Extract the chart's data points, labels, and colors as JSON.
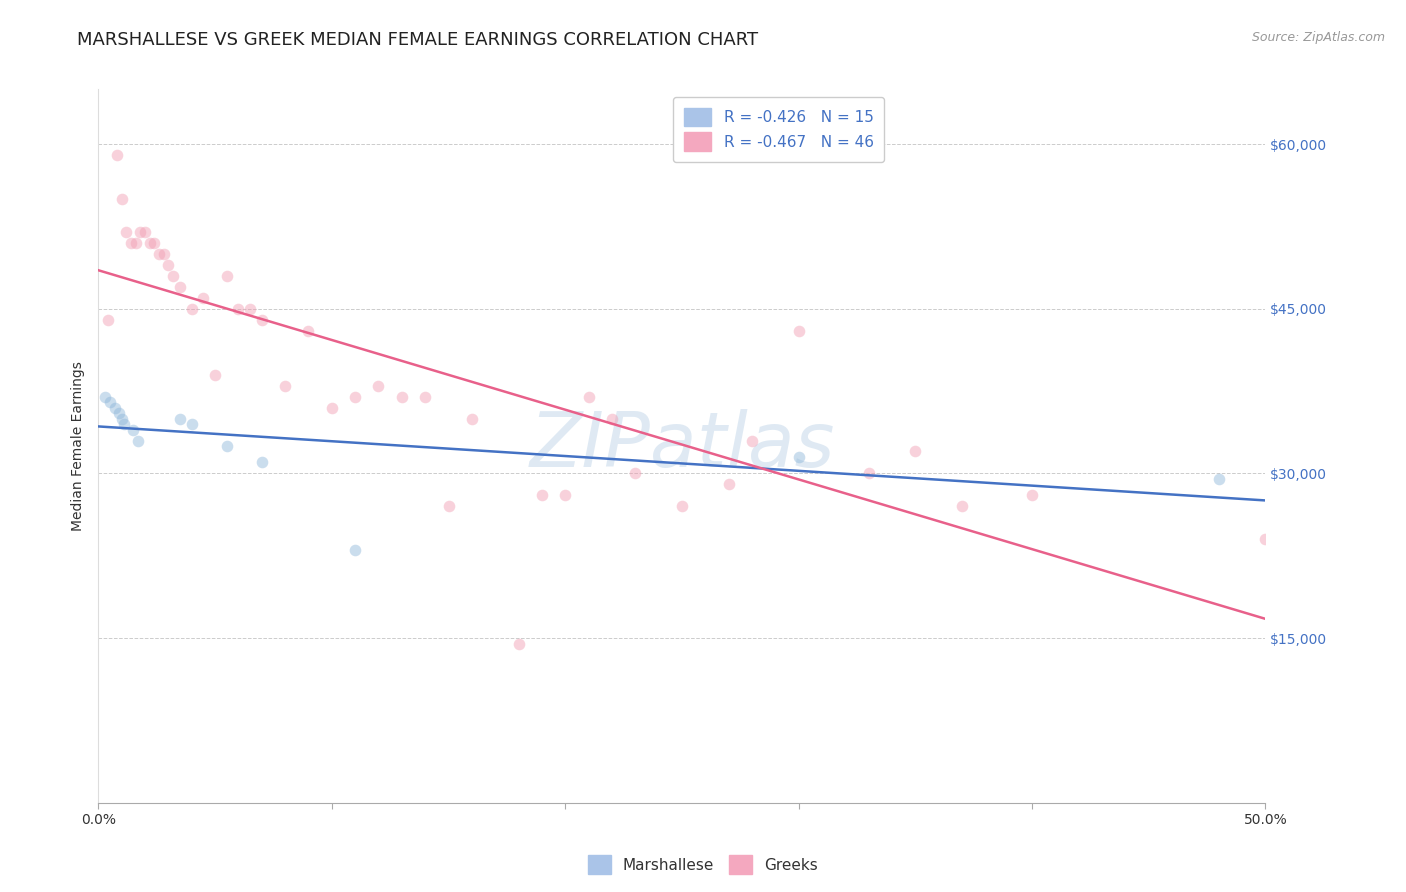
{
  "title": "MARSHALLESE VS GREEK MEDIAN FEMALE EARNINGS CORRELATION CHART",
  "source": "Source: ZipAtlas.com",
  "ylabel": "Median Female Earnings",
  "watermark": "ZIPatlas",
  "legend_label1": "Marshallese",
  "legend_label2": "Greeks",
  "marshallese_x": [
    0.3,
    0.5,
    0.7,
    0.9,
    1.0,
    1.1,
    1.5,
    1.7,
    3.5,
    4.0,
    5.5,
    7.0,
    11.0,
    30.0,
    48.0
  ],
  "marshallese_y": [
    37000,
    36500,
    36000,
    35500,
    35000,
    34500,
    34000,
    33000,
    35000,
    34500,
    32500,
    31000,
    23000,
    31500,
    29500
  ],
  "greeks_x": [
    0.4,
    0.8,
    1.0,
    1.2,
    1.4,
    1.6,
    1.8,
    2.0,
    2.2,
    2.4,
    2.6,
    2.8,
    3.0,
    3.2,
    3.5,
    4.0,
    4.5,
    5.0,
    5.5,
    6.0,
    6.5,
    7.0,
    8.0,
    9.0,
    10.0,
    11.0,
    12.0,
    13.0,
    14.0,
    15.0,
    16.0,
    18.0,
    19.0,
    20.0,
    21.0,
    22.0,
    23.0,
    25.0,
    27.0,
    28.0,
    30.0,
    33.0,
    35.0,
    37.0,
    40.0,
    50.0
  ],
  "greeks_y": [
    44000,
    59000,
    55000,
    52000,
    51000,
    51000,
    52000,
    52000,
    51000,
    51000,
    50000,
    50000,
    49000,
    48000,
    47000,
    45000,
    46000,
    39000,
    48000,
    45000,
    45000,
    44000,
    38000,
    43000,
    36000,
    37000,
    38000,
    37000,
    37000,
    27000,
    35000,
    14500,
    28000,
    28000,
    37000,
    35000,
    30000,
    27000,
    29000,
    33000,
    43000,
    30000,
    32000,
    27000,
    28000,
    24000
  ],
  "blue_scatter_color": "#8ab4d8",
  "pink_scatter_color": "#f09ab0",
  "blue_line_color": "#4472c4",
  "pink_line_color": "#e8608a",
  "background_color": "#ffffff",
  "grid_color": "#cccccc",
  "title_fontsize": 13,
  "axis_label_fontsize": 10,
  "tick_label_fontsize": 10,
  "right_tick_color": "#4472c4",
  "scatter_size": 70,
  "scatter_alpha": 0.45,
  "line_width": 1.8,
  "xlim": [
    0,
    50
  ],
  "ylim": [
    0,
    65000
  ],
  "yticks": [
    0,
    15000,
    30000,
    45000,
    60000
  ],
  "ytick_labels": [
    "",
    "$15,000",
    "$30,000",
    "$45,000",
    "$60,000"
  ],
  "xticks": [
    0,
    10,
    20,
    30,
    40,
    50
  ],
  "xtick_labels": [
    "0.0%",
    "",
    "",
    "",
    "",
    "50.0%"
  ]
}
